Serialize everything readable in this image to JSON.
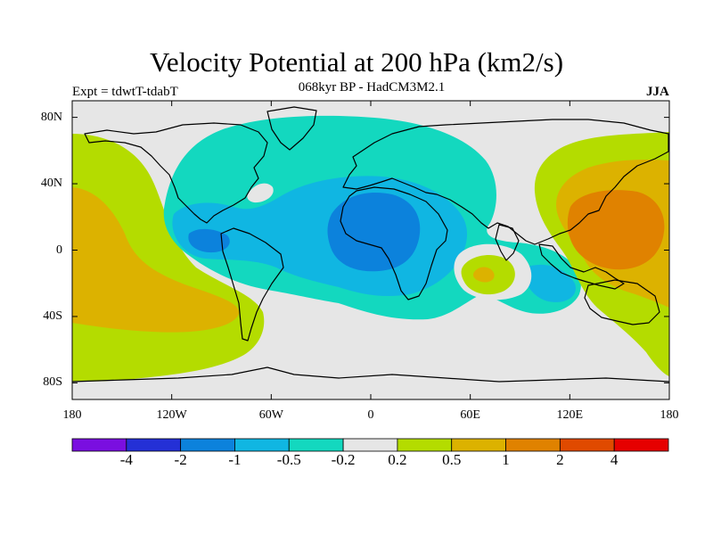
{
  "title": "Velocity Potential at 200 hPa (km2/s)",
  "subtitle": "068kyr BP - HadCM3M2.1",
  "experiment_label": "Expt = tdwtT-tdabT",
  "season_label": "JJA",
  "map": {
    "projection": "cylindrical-equidistant",
    "lon_range": [
      -180,
      180
    ],
    "lat_range": [
      -90,
      90
    ],
    "x_ticks": [
      {
        "lon": -180,
        "label": "180"
      },
      {
        "lon": -120,
        "label": "120W"
      },
      {
        "lon": -60,
        "label": "60W"
      },
      {
        "lon": 0,
        "label": "0"
      },
      {
        "lon": 60,
        "label": "60E"
      },
      {
        "lon": 120,
        "label": "120E"
      },
      {
        "lon": 180,
        "label": "180"
      }
    ],
    "y_ticks": [
      {
        "lat": 80,
        "label": "80N"
      },
      {
        "lat": 40,
        "label": "40N"
      },
      {
        "lat": 0,
        "label": "0"
      },
      {
        "lat": -40,
        "label": "40S"
      },
      {
        "lat": -80,
        "label": "80S"
      }
    ],
    "background_color": "#e6e6e6"
  },
  "colorbar": {
    "colors": [
      "#7a0fe0",
      "#2430d6",
      "#0c82dc",
      "#10b6e2",
      "#13d8bf",
      "#e6e6e6",
      "#b4dc00",
      "#dcb200",
      "#e08200",
      "#e04a00",
      "#e60000"
    ],
    "labels": [
      "-4",
      "-2",
      "-1",
      "-0.5",
      "-0.2",
      "0.2",
      "0.5",
      "1",
      "2",
      "4"
    ]
  }
}
